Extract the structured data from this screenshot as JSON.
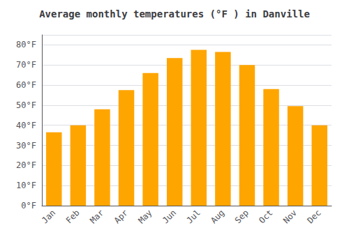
{
  "chart_data": {
    "type": "bar",
    "title": "Average monthly temperatures (°F ) in Danville",
    "categories": [
      "Jan",
      "Feb",
      "Mar",
      "Apr",
      "May",
      "Jun",
      "Jul",
      "Aug",
      "Sep",
      "Oct",
      "Nov",
      "Dec"
    ],
    "values": [
      36.5,
      40.0,
      48.0,
      57.5,
      66.0,
      73.5,
      77.5,
      76.5,
      70.0,
      58.0,
      49.5,
      40.0
    ],
    "color": "#FFA500",
    "ylim": [
      0,
      85
    ],
    "yticks": [
      {
        "value": 0,
        "label": "0°F"
      },
      {
        "value": 10,
        "label": "10°F"
      },
      {
        "value": 20,
        "label": "20°F"
      },
      {
        "value": 30,
        "label": "30°F"
      },
      {
        "value": 40,
        "label": "40°F"
      },
      {
        "value": 50,
        "label": "50°F"
      },
      {
        "value": 60,
        "label": "60°F"
      },
      {
        "value": 70,
        "label": "70°F"
      },
      {
        "value": 80,
        "label": "80°F"
      }
    ],
    "grid": true
  }
}
